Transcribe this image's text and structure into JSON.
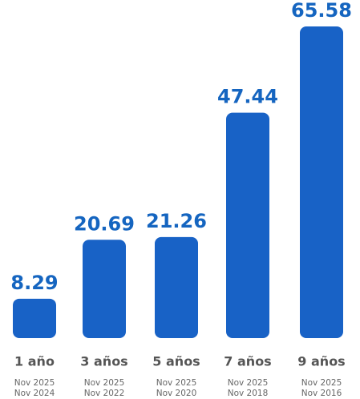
{
  "chart_data": {
    "type": "bar",
    "categories": [
      "1 año",
      "3 años",
      "5 años",
      "7 años",
      "9 años"
    ],
    "periods": [
      [
        "Nov 2025",
        "Nov 2024"
      ],
      [
        "Nov 2025",
        "Nov 2022"
      ],
      [
        "Nov 2025",
        "Nov 2020"
      ],
      [
        "Nov 2025",
        "Nov 2018"
      ],
      [
        "Nov 2025",
        "Nov 2016"
      ]
    ],
    "values": [
      8.29,
      20.69,
      21.26,
      47.44,
      65.58
    ],
    "color": "#1862c6"
  }
}
